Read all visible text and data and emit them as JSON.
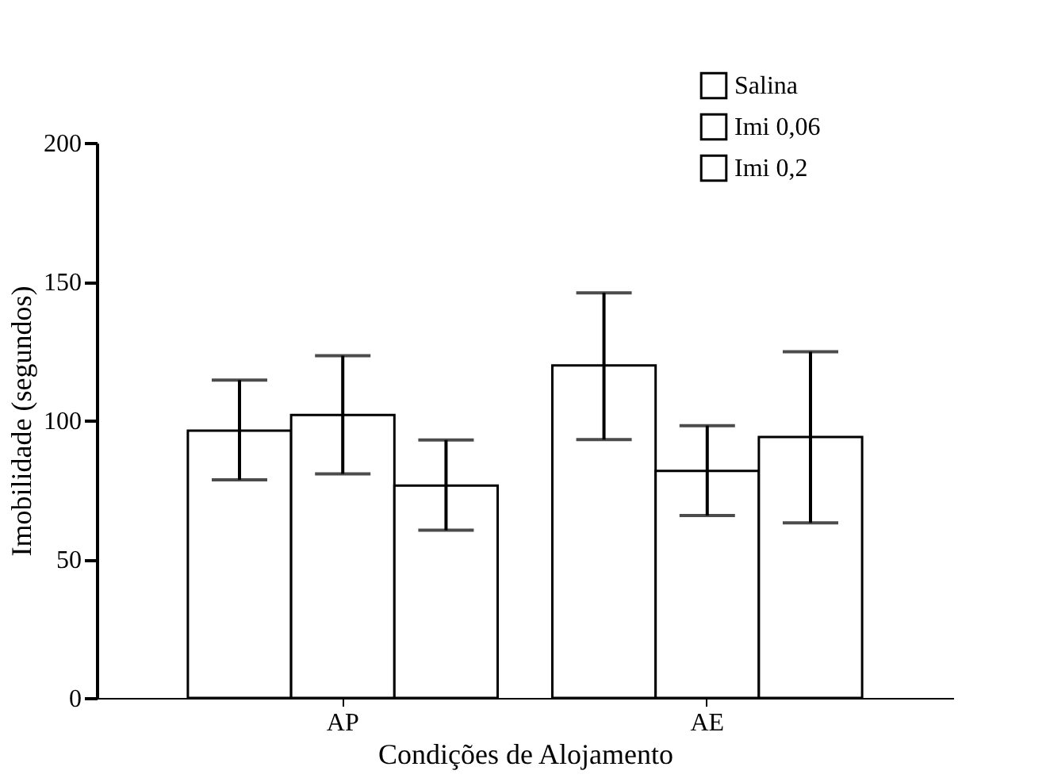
{
  "chart_data": {
    "type": "bar",
    "xlabel": "Condições de Alojamento",
    "ylabel": "Imobilidade (segundos)",
    "categories": [
      "AP",
      "AE"
    ],
    "series": [
      {
        "name": "Salina",
        "color": "#ffffff",
        "values": [
          96.3,
          119.8
        ],
        "errors": [
          [
            78.6,
            114.5
          ],
          [
            93.1,
            145.9
          ]
        ]
      },
      {
        "name": "Imi 0,06",
        "color": "#ffffff",
        "values": [
          101.9,
          81.8
        ],
        "errors": [
          [
            80.7,
            123.3
          ],
          [
            65.7,
            98.1
          ]
        ]
      },
      {
        "name": "Imi 0,2",
        "color": "#ffffff",
        "values": [
          76.5,
          94
        ],
        "errors": [
          [
            60.4,
            92.9
          ],
          [
            63.1,
            124.7
          ]
        ]
      }
    ],
    "ylim": [
      0,
      200
    ],
    "yticks": [
      0,
      50,
      100,
      150,
      200
    ],
    "grid": false,
    "legend": "top right"
  }
}
